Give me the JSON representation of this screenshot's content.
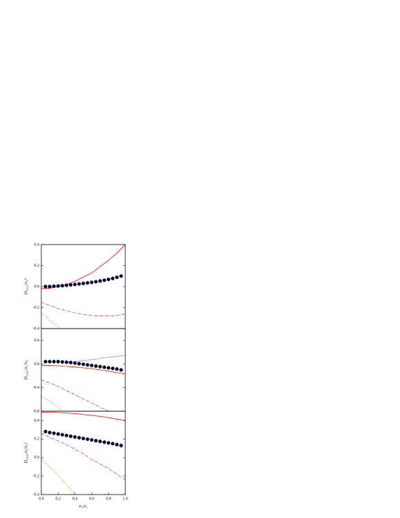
{
  "chart_data": [
    {
      "type": "line",
      "ylabel": "D₁₁₁₁/σ₁⁴",
      "xlim": [
        0,
        1
      ],
      "ylim": [
        -0.4,
        0.4
      ],
      "yticks": [
        0.4,
        0.2,
        {
          "value": 0,
          "label": "0.0"
        },
        -0.2,
        -0.4
      ],
      "series": [
        {
          "color": "#ff0000",
          "style": "solid",
          "x": [
            0,
            0.1,
            0.2,
            0.3,
            0.4,
            0.5,
            0.6,
            0.7,
            0.8,
            0.9,
            1
          ],
          "values": [
            -0.02,
            -0.016,
            0,
            0.02,
            0.05,
            0.09,
            0.13,
            0.19,
            0.25,
            0.32,
            0.4
          ]
        },
        {
          "color": "#000033",
          "style": "markers",
          "x": [
            0.05,
            0.1,
            0.15,
            0.2,
            0.25,
            0.3,
            0.35,
            0.4,
            0.45,
            0.5,
            0.55,
            0.6,
            0.65,
            0.7,
            0.75,
            0.8,
            0.85,
            0.9,
            0.95
          ],
          "values": [
            0,
            0,
            0.003,
            0.005,
            0.008,
            0.012,
            0.016,
            0.02,
            0.025,
            0.03,
            0.035,
            0.04,
            0.046,
            0.053,
            0.06,
            0.068,
            0.077,
            0.088,
            0.1
          ]
        },
        {
          "color": "#e0218a",
          "style": "dashdot",
          "x": [
            0,
            0.1,
            0.2,
            0.3,
            0.4,
            0.5,
            0.6,
            0.7,
            0.8,
            0.9,
            1
          ],
          "values": [
            -0.15,
            -0.18,
            -0.21,
            -0.23,
            -0.25,
            -0.265,
            -0.275,
            -0.28,
            -0.28,
            -0.275,
            -0.26
          ]
        },
        {
          "color": "#808000",
          "style": "dot",
          "x": [
            0,
            0.05,
            0.1,
            0.15,
            0.2,
            0.22
          ],
          "values": [
            -0.25,
            -0.28,
            -0.32,
            -0.35,
            -0.38,
            -0.4
          ]
        }
      ]
    },
    {
      "type": "line",
      "ylabel": "D₁₁₁₂/σ₁³σ₂",
      "xlim": [
        0,
        1
      ],
      "ylim": [
        -0.8,
        0.6
      ],
      "yticks": [
        0.4,
        {
          "value": 0,
          "label": "0.0"
        },
        -0.4,
        -0.8
      ],
      "series": [
        {
          "color": "#0000cc",
          "style": "dot",
          "x": [
            0.3,
            0.4,
            0.5,
            0.6,
            0.7,
            0.8,
            0.9,
            1
          ],
          "values": [
            0.03,
            0.04,
            0.055,
            0.075,
            0.095,
            0.115,
            0.13,
            0.15
          ]
        },
        {
          "color": "#ff0000",
          "style": "solid",
          "x": [
            0,
            0.1,
            0.2,
            0.3,
            0.4,
            0.5,
            0.6,
            0.7,
            0.8,
            0.9,
            1
          ],
          "values": [
            -0.02,
            -0.025,
            -0.03,
            -0.04,
            -0.05,
            -0.065,
            -0.08,
            -0.1,
            -0.12,
            -0.145,
            -0.17
          ]
        },
        {
          "color": "#000033",
          "style": "markers",
          "x": [
            0.05,
            0.1,
            0.15,
            0.2,
            0.25,
            0.3,
            0.35,
            0.4,
            0.45,
            0.5,
            0.55,
            0.6,
            0.65,
            0.7,
            0.75,
            0.8,
            0.85,
            0.9,
            0.95
          ],
          "values": [
            0.04,
            0.04,
            0.04,
            0.04,
            0.035,
            0.03,
            0.025,
            0.015,
            0.005,
            -0.005,
            -0.015,
            -0.025,
            -0.035,
            -0.045,
            -0.055,
            -0.065,
            -0.075,
            -0.085,
            -0.1
          ]
        },
        {
          "color": "#e0218a",
          "style": "dashdot",
          "x": [
            0,
            0.1,
            0.2,
            0.3,
            0.4,
            0.5,
            0.6,
            0.7,
            0.8
          ],
          "values": [
            -0.27,
            -0.32,
            -0.38,
            -0.45,
            -0.52,
            -0.59,
            -0.66,
            -0.73,
            -0.8
          ]
        },
        {
          "color": "#808000",
          "style": "dot",
          "x": [
            0,
            0.1,
            0.2,
            0.25
          ],
          "values": [
            -0.55,
            -0.63,
            -0.73,
            -0.8
          ]
        }
      ]
    },
    {
      "type": "line",
      "ylabel": "D₁₁₂₂/σ₁²σ₂²",
      "xlabel": "σ₂/σ₁",
      "xlim": [
        0,
        1
      ],
      "ylim": [
        -0.4,
        0.5
      ],
      "xticks": [
        {
          "value": 0,
          "label": "0.0"
        },
        0.2,
        0.4,
        0.6,
        0.8,
        {
          "value": 1,
          "label": "1.0"
        }
      ],
      "yticks": [
        0.4,
        0.2,
        {
          "value": 0,
          "label": "0.0"
        },
        -0.2,
        -0.4
      ],
      "series": [
        {
          "color": "#ff0000",
          "style": "solid",
          "x": [
            0,
            0.1,
            0.2,
            0.3,
            0.4,
            0.5,
            0.6,
            0.7,
            0.8,
            0.9,
            1
          ],
          "values": [
            0.49,
            0.49,
            0.485,
            0.48,
            0.475,
            0.465,
            0.455,
            0.445,
            0.43,
            0.415,
            0.4
          ]
        },
        {
          "color": "#000033",
          "style": "markers",
          "x": [
            0.05,
            0.1,
            0.15,
            0.2,
            0.25,
            0.3,
            0.35,
            0.4,
            0.45,
            0.5,
            0.55,
            0.6,
            0.65,
            0.7,
            0.75,
            0.8,
            0.85,
            0.9,
            0.95
          ],
          "values": [
            0.28,
            0.27,
            0.262,
            0.254,
            0.246,
            0.238,
            0.23,
            0.222,
            0.214,
            0.206,
            0.198,
            0.19,
            0.182,
            0.174,
            0.166,
            0.158,
            0.15,
            0.14,
            0.13
          ]
        },
        {
          "color": "#e0218a",
          "style": "dashdot",
          "x": [
            0,
            0.1,
            0.2,
            0.3,
            0.4,
            0.5,
            0.6,
            0.7,
            0.8,
            0.9,
            1
          ],
          "values": [
            0.26,
            0.22,
            0.18,
            0.14,
            0.09,
            0.04,
            -0.02,
            -0.07,
            -0.12,
            -0.18,
            -0.24
          ]
        },
        {
          "color": "#808000",
          "style": "dot",
          "x": [
            0,
            0.1,
            0.2,
            0.3,
            0.4
          ],
          "values": [
            -0.02,
            -0.1,
            -0.19,
            -0.29,
            -0.4
          ]
        }
      ]
    }
  ]
}
